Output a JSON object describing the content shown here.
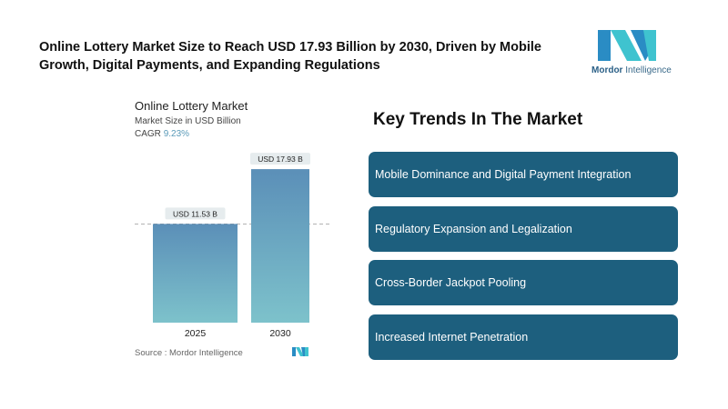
{
  "header": {
    "title": "Online Lottery Market Size to Reach USD 17.93 Billion by 2030, Driven by Mobile Growth, Digital Payments, and Expanding Regulations"
  },
  "logo": {
    "brand_bold": "Mordor",
    "brand_rest": " Intelligence",
    "colors": [
      "#2a8cc4",
      "#3fc3cf"
    ]
  },
  "chart_data": {
    "type": "bar",
    "title": "Online Lottery Market",
    "subtitle": "Market Size in USD Billion",
    "cagr_label": "CAGR",
    "cagr_value": "9.23%",
    "categories": [
      "2025",
      "2030"
    ],
    "values": [
      11.53,
      17.93
    ],
    "data_labels": [
      "USD 11.53 B",
      "USD 17.93 B"
    ],
    "colors": {
      "top": "#5b8fb8",
      "bottom": "#7dc2cb"
    },
    "source": "Source :  Mordor Intelligence"
  },
  "trends": {
    "title": "Key Trends In The Market",
    "items": [
      "Mobile Dominance and Digital Payment Integration",
      "Regulatory Expansion and Legalization",
      "Cross-Border Jackpot Pooling",
      "Increased Internet Penetration"
    ]
  }
}
